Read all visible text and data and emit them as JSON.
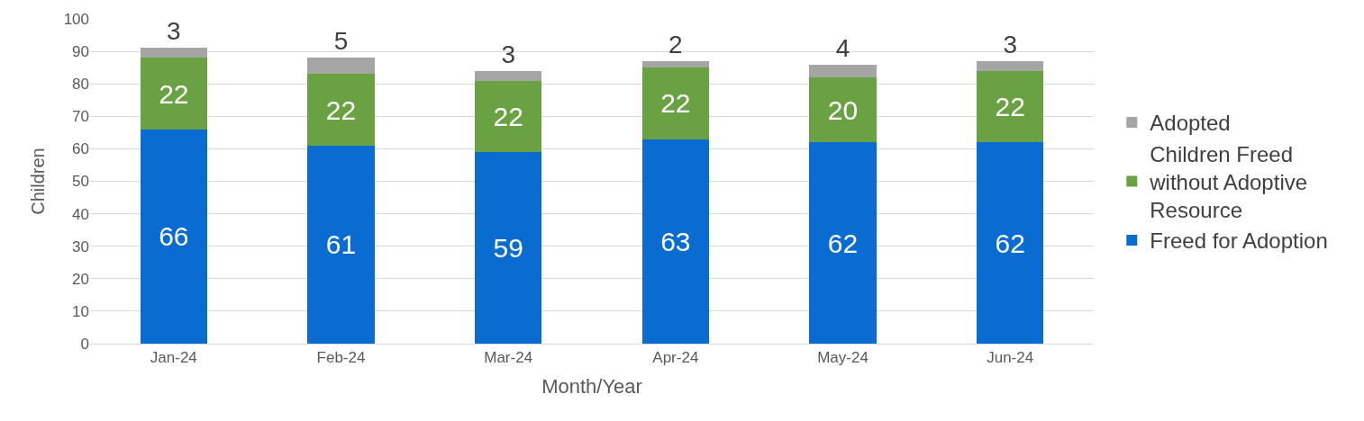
{
  "chart_data": {
    "type": "bar",
    "stacked": true,
    "xlabel": "Month/Year",
    "ylabel": "Children",
    "categories": [
      "Jan-24",
      "Feb-24",
      "Mar-24",
      "Apr-24",
      "May-24",
      "Jun-24"
    ],
    "series": [
      {
        "name": "Freed for Adoption",
        "color": "#0a6bd1",
        "values": [
          66,
          61,
          59,
          63,
          62,
          62
        ]
      },
      {
        "name": "Children Freed without Adoptive Resource",
        "color": "#6aa243",
        "values": [
          22,
          22,
          22,
          22,
          20,
          22
        ]
      },
      {
        "name": "Adopted",
        "color": "#a5a5a5",
        "values": [
          3,
          5,
          3,
          2,
          4,
          3
        ]
      }
    ],
    "ylim": [
      0,
      100
    ],
    "yticks": [
      0,
      10,
      20,
      30,
      40,
      50,
      60,
      70,
      80,
      90,
      100
    ],
    "grid": "y",
    "legend": "right",
    "data_labels": true
  }
}
